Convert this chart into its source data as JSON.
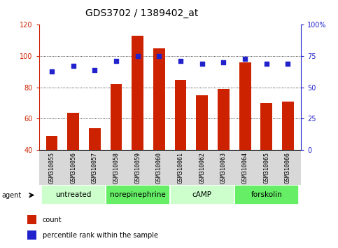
{
  "title": "GDS3702 / 1389402_at",
  "samples": [
    "GSM310055",
    "GSM310056",
    "GSM310057",
    "GSM310058",
    "GSM310059",
    "GSM310060",
    "GSM310061",
    "GSM310062",
    "GSM310063",
    "GSM310064",
    "GSM310065",
    "GSM310066"
  ],
  "count_values": [
    49,
    64,
    54,
    82,
    113,
    105,
    85,
    75,
    79,
    96,
    70,
    71
  ],
  "percentile_values": [
    63,
    67,
    64,
    71,
    75,
    75,
    71,
    69,
    70,
    73,
    69,
    69
  ],
  "bar_color": "#cc2200",
  "dot_color": "#2222cc",
  "ylim_left": [
    40,
    120
  ],
  "ylim_right": [
    0,
    100
  ],
  "yticks_left": [
    40,
    60,
    80,
    100,
    120
  ],
  "yticks_right": [
    0,
    25,
    50,
    75,
    100
  ],
  "yticklabels_right": [
    "0",
    "25",
    "50",
    "75",
    "100%"
  ],
  "groups": [
    {
      "label": "untreated",
      "indices": [
        0,
        1,
        2
      ],
      "color": "#ccffcc"
    },
    {
      "label": "norepinephrine",
      "indices": [
        3,
        4,
        5
      ],
      "color": "#66ee66"
    },
    {
      "label": "cAMP",
      "indices": [
        6,
        7,
        8
      ],
      "color": "#ccffcc"
    },
    {
      "label": "forskolin",
      "indices": [
        9,
        10,
        11
      ],
      "color": "#66ee66"
    }
  ],
  "agent_label": "agent",
  "legend_count_label": "count",
  "legend_pct_label": "percentile rank within the sample",
  "grid_linestyle": "dotted",
  "title_fontsize": 10,
  "axis_fontsize": 7,
  "sample_fontsize": 6,
  "group_fontsize": 7.5,
  "bar_width": 0.55,
  "bg_color": "#d8d8d8"
}
